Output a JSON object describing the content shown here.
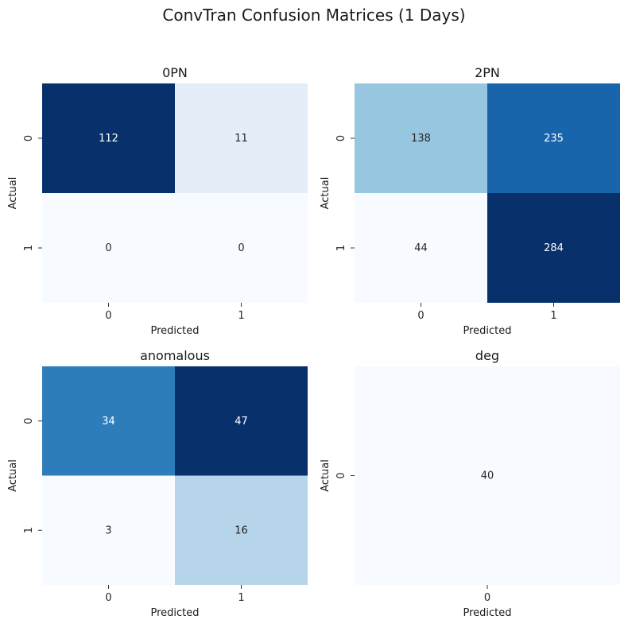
{
  "figure": {
    "title": "ConvTran Confusion Matrices (1 Days)"
  },
  "chart_data": [
    {
      "type": "heatmap",
      "title": "0PN",
      "xlabel": "Predicted",
      "ylabel": "Actual",
      "x_ticks": [
        "0",
        "1"
      ],
      "y_ticks": [
        "0",
        "1"
      ],
      "matrix": [
        [
          112,
          11
        ],
        [
          0,
          0
        ]
      ],
      "colormap": "Blues"
    },
    {
      "type": "heatmap",
      "title": "2PN",
      "xlabel": "Predicted",
      "ylabel": "Actual",
      "x_ticks": [
        "0",
        "1"
      ],
      "y_ticks": [
        "0",
        "1"
      ],
      "matrix": [
        [
          138,
          235
        ],
        [
          44,
          284
        ]
      ],
      "colormap": "Blues"
    },
    {
      "type": "heatmap",
      "title": "anomalous",
      "xlabel": "Predicted",
      "ylabel": "Actual",
      "x_ticks": [
        "0",
        "1"
      ],
      "y_ticks": [
        "0",
        "1"
      ],
      "matrix": [
        [
          34,
          47
        ],
        [
          3,
          16
        ]
      ],
      "colormap": "Blues"
    },
    {
      "type": "heatmap",
      "title": "deg",
      "xlabel": "Predicted",
      "ylabel": "Actual",
      "x_ticks": [
        "0"
      ],
      "y_ticks": [
        "0"
      ],
      "matrix": [
        [
          40
        ]
      ],
      "colormap": "Blues"
    }
  ]
}
